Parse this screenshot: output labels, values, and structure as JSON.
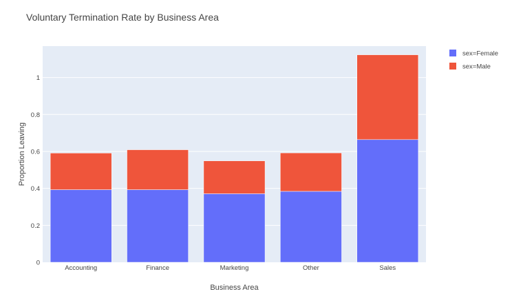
{
  "chart_data": {
    "type": "bar",
    "barmode": "stack",
    "title": "Voluntary Termination Rate by Business Area",
    "xlabel": "Business Area",
    "ylabel": "Proportion Leaving",
    "categories": [
      "Accounting",
      "Finance",
      "Marketing",
      "Other",
      "Sales"
    ],
    "series": [
      {
        "name": "sex=Female",
        "color": "#636efa",
        "values": [
          0.393,
          0.393,
          0.371,
          0.384,
          0.664
        ]
      },
      {
        "name": "sex=Male",
        "color": "#ef553b",
        "values": [
          0.198,
          0.216,
          0.178,
          0.208,
          0.459
        ]
      }
    ],
    "ylim": [
      0,
      1.17
    ],
    "yticks": [
      0,
      0.2,
      0.4,
      0.6,
      0.8,
      1
    ],
    "ytick_labels": [
      "0",
      "0.2",
      "0.4",
      "0.6",
      "0.8",
      "1"
    ],
    "grid": true,
    "legend_position": "top-right",
    "plot_bgcolor": "#e5ecf6"
  }
}
